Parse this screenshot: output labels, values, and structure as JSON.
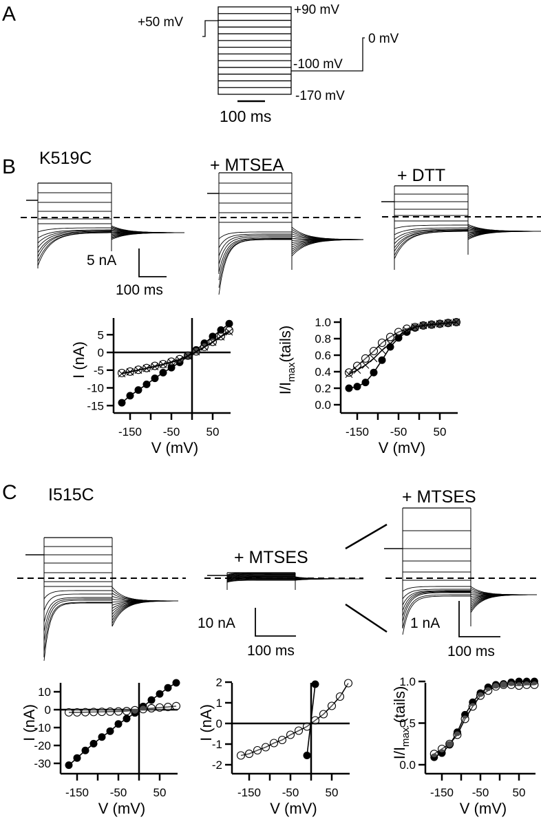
{
  "panels": {
    "A": {
      "letter": "A",
      "holding_label": "+50 mV",
      "top_label": "+90 mV",
      "tail_label": "-100 mV",
      "bottom_label": "-170 mV",
      "zero_label": "0 mV",
      "scalebar_time": "100 ms",
      "step_count": 14
    },
    "B": {
      "letter": "B",
      "traces": [
        {
          "title": "K519C"
        },
        {
          "title": "+ MTSEA"
        },
        {
          "title": "+ DTT"
        }
      ],
      "scalebar_current": "5 nA",
      "scalebar_time": "100 ms"
    },
    "C": {
      "letter": "C",
      "traces": [
        {
          "title": "I515C"
        },
        {
          "title": "+ MTSES"
        },
        {
          "title": "+ MTSES"
        }
      ],
      "scalebar_current_left": "10 nA",
      "scalebar_time_left": "100 ms",
      "scalebar_current_right": "1 nA",
      "scalebar_time_right": "100 ms"
    }
  },
  "chart_data": [
    {
      "id": "B-IV",
      "type": "scatter",
      "title": "",
      "xlabel": "V (mV)",
      "ylabel": "I (nA)",
      "xlim": [
        -180,
        100
      ],
      "ylim": [
        -17,
        8
      ],
      "xticks": [
        -150,
        -100,
        -50,
        0,
        50
      ],
      "xticklabels": [
        "-150",
        "",
        "-50",
        "",
        "50"
      ],
      "yticks": [
        5,
        0,
        -5,
        -10,
        -15
      ],
      "yticklabels": [
        "5",
        "0",
        "-5",
        "-10",
        "-15"
      ],
      "zero_lines": true,
      "x": [
        -170,
        -150,
        -130,
        -110,
        -90,
        -70,
        -50,
        -30,
        -10,
        10,
        30,
        50,
        70,
        90
      ],
      "series": [
        {
          "name": "K519C",
          "marker": "filled-circle",
          "values": [
            -14.2,
            -12.2,
            -10.6,
            -9.0,
            -7.3,
            -5.7,
            -4.3,
            -2.8,
            -1.0,
            0.7,
            2.6,
            4.5,
            6.3,
            8.1
          ]
        },
        {
          "name": "+ MTSEA",
          "marker": "open-circle",
          "values": [
            -5.8,
            -5.4,
            -4.9,
            -4.4,
            -3.8,
            -3.3,
            -2.6,
            -1.9,
            -0.9,
            0.3,
            1.6,
            3.0,
            4.6,
            6.2
          ]
        },
        {
          "name": "+ DTT",
          "marker": "cross",
          "values": [
            -6.0,
            -5.5,
            -5.0,
            -4.5,
            -4.0,
            -3.4,
            -2.8,
            -2.1,
            -1.0,
            0.2,
            1.5,
            2.9,
            4.4,
            5.8
          ]
        }
      ]
    },
    {
      "id": "B-activation",
      "type": "scatter",
      "title": "",
      "xlabel": "V (mV)",
      "ylabel": "I/Imax(tails)",
      "xlim": [
        -180,
        100
      ],
      "ylim": [
        -0.1,
        1.05
      ],
      "xticks": [
        -150,
        -100,
        -50,
        0,
        50
      ],
      "xticklabels": [
        "-150",
        "",
        "-50",
        "",
        "50"
      ],
      "yticks": [
        0,
        0.2,
        0.4,
        0.6,
        0.8,
        1.0
      ],
      "yticklabels": [
        "0.0",
        "0.2",
        "0.4",
        "0.6",
        "0.8",
        "1.0"
      ],
      "zero_lines": false,
      "x": [
        -170,
        -150,
        -130,
        -110,
        -90,
        -70,
        -50,
        -30,
        -10,
        10,
        30,
        50,
        70,
        90
      ],
      "series": [
        {
          "name": "K519C",
          "marker": "filled-circle",
          "values": [
            0.2,
            0.22,
            0.27,
            0.39,
            0.54,
            0.7,
            0.81,
            0.88,
            0.93,
            0.96,
            0.97,
            0.98,
            0.99,
            1.0
          ]
        },
        {
          "name": "+ MTSEA",
          "marker": "open-circle",
          "values": [
            0.39,
            0.47,
            0.56,
            0.65,
            0.75,
            0.82,
            0.88,
            0.92,
            0.94,
            0.96,
            0.97,
            0.98,
            0.99,
            1.0
          ]
        },
        {
          "name": "+ DTT",
          "marker": "cross",
          "values": [
            0.37,
            0.42,
            0.48,
            0.56,
            0.66,
            0.74,
            0.83,
            0.9,
            0.94,
            0.96,
            0.97,
            0.98,
            0.99,
            1.0
          ]
        }
      ]
    },
    {
      "id": "C-IV",
      "type": "scatter",
      "title": "",
      "xlabel": "V (mV)",
      "ylabel": "I (nA)",
      "xlim": [
        -180,
        100
      ],
      "ylim": [
        -35,
        15
      ],
      "xticks": [
        -150,
        -100,
        -50,
        0,
        50
      ],
      "xticklabels": [
        "-150",
        "",
        "-50",
        "",
        "50"
      ],
      "yticks": [
        10,
        0,
        -10,
        -20,
        -30
      ],
      "yticklabels": [
        "10",
        "0",
        "-10",
        "-20",
        "-30"
      ],
      "zero_lines": true,
      "x": [
        -170,
        -150,
        -130,
        -110,
        -90,
        -70,
        -50,
        -30,
        -10,
        10,
        30,
        50,
        70,
        90
      ],
      "series": [
        {
          "name": "I515C",
          "marker": "filled-circle",
          "values": [
            -31,
            -27,
            -22.8,
            -19,
            -15.3,
            -12,
            -8,
            -5,
            -1.8,
            1.8,
            5.4,
            8.8,
            12.2,
            15
          ]
        },
        {
          "name": "+ MTSES",
          "marker": "open-circle",
          "values": [
            -1.5,
            -1.5,
            -1.4,
            -1.3,
            -1.2,
            -1.1,
            -1.0,
            -0.8,
            -0.3,
            0.3,
            0.8,
            1.2,
            1.5,
            2.0
          ]
        }
      ]
    },
    {
      "id": "C-IV-zoom",
      "type": "scatter",
      "title": "",
      "xlabel": "V (mV)",
      "ylabel": "I (nA)",
      "xlim": [
        -180,
        100
      ],
      "ylim": [
        -2.4,
        2
      ],
      "xticks": [
        -150,
        -100,
        -50,
        0,
        50
      ],
      "xticklabels": [
        "-150",
        "",
        "-50",
        "",
        "50"
      ],
      "yticks": [
        2,
        1,
        0,
        -1,
        -2
      ],
      "yticklabels": [
        "2",
        "1",
        "0",
        "-1",
        "-2"
      ],
      "zero_lines": true,
      "x": [
        -170,
        -150,
        -130,
        -110,
        -90,
        -70,
        -50,
        -30,
        -10,
        10,
        30,
        50,
        70,
        90
      ],
      "series": [
        {
          "name": "+ MTSES",
          "marker": "open-circle",
          "values": [
            -1.55,
            -1.47,
            -1.3,
            -1.15,
            -0.95,
            -0.8,
            -0.55,
            -0.35,
            -0.15,
            0.15,
            0.45,
            0.85,
            1.3,
            1.95
          ]
        },
        {
          "name": "I515C",
          "marker": "filled-circle",
          "x": [
            -10,
            10
          ],
          "values": [
            -1.55,
            1.9
          ]
        }
      ]
    },
    {
      "id": "C-activation",
      "type": "scatter",
      "title": "",
      "xlabel": "V (mV)",
      "ylabel": "I/Imax (tails)",
      "xlim": [
        -180,
        100
      ],
      "ylim": [
        -0.1,
        1.05
      ],
      "xticks": [
        -150,
        -100,
        -50,
        0,
        50
      ],
      "xticklabels": [
        "-150",
        "",
        "-50",
        "",
        "50"
      ],
      "yticks": [
        0,
        0.5,
        1.0
      ],
      "yticklabels": [
        "0.0",
        "0.5",
        "1.0"
      ],
      "zero_lines": false,
      "x": [
        -170,
        -150,
        -130,
        -110,
        -90,
        -70,
        -50,
        -30,
        -10,
        10,
        30,
        50,
        70,
        90
      ],
      "series": [
        {
          "name": "I515C",
          "marker": "filled-circle",
          "values": [
            0.09,
            0.14,
            0.24,
            0.39,
            0.6,
            0.75,
            0.86,
            0.93,
            0.96,
            0.97,
            0.99,
            1.0,
            1.0,
            1.0
          ]
        },
        {
          "name": "+ MTSES",
          "marker": "open-circle",
          "values": [
            0.13,
            0.19,
            0.25,
            0.36,
            0.55,
            0.7,
            0.83,
            0.89,
            0.94,
            0.96,
            0.96,
            0.95,
            0.96,
            0.96
          ]
        }
      ]
    }
  ]
}
